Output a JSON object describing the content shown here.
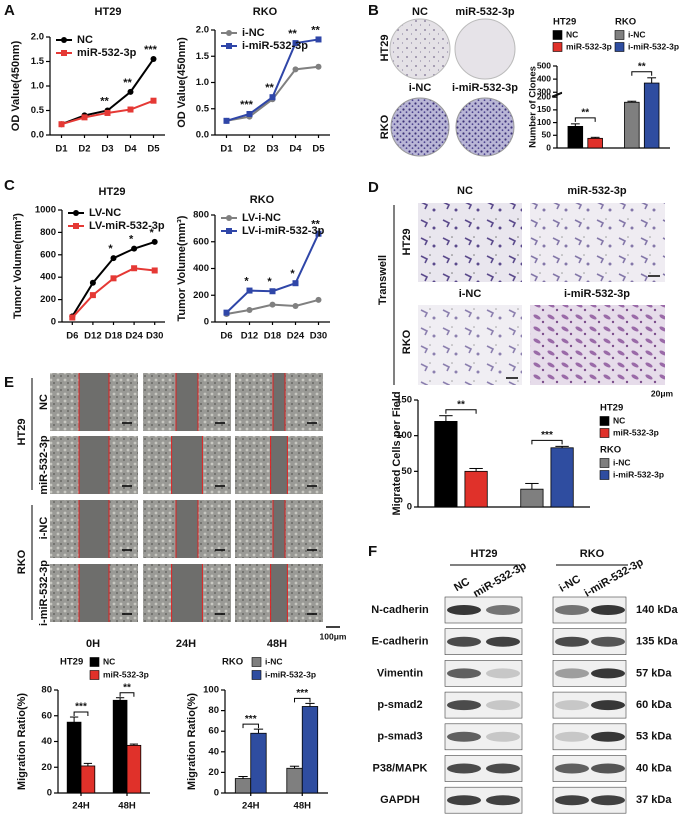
{
  "panel_labels": [
    "A",
    "B",
    "C",
    "D",
    "E",
    "F"
  ],
  "colony_assay": {
    "columns_top": [
      "NC",
      "miR-532-3p"
    ],
    "columns_bottom": [
      "i-NC",
      "i-miR-532-3p"
    ],
    "rows": [
      "HT29",
      "RKO"
    ]
  },
  "transwell": {
    "label": "Transwell",
    "columns_top": [
      "NC",
      "miR-532-3p"
    ],
    "columns_bottom": [
      "i-NC",
      "i-miR-532-3p"
    ],
    "rows": [
      "HT29",
      "RKO"
    ],
    "scale_bar": "20μm"
  },
  "wound_healing": {
    "groups": [
      "HT29",
      "RKO"
    ],
    "rows": [
      "NC",
      "miR-532-3p",
      "i-NC",
      "i-miR-532-3p"
    ],
    "times": [
      "0H",
      "24H",
      "48H"
    ],
    "scale_bar": "100μm"
  },
  "western_blot": {
    "groups": [
      "HT29",
      "RKO"
    ],
    "lanes": [
      "NC",
      "miR-532-3p",
      "i-NC",
      "i-miR-532-3p"
    ],
    "proteins": [
      {
        "name": "N-cadherin",
        "size": "140 kDa"
      },
      {
        "name": "E-cadherin",
        "size": "135 kDa"
      },
      {
        "name": "Vimentin",
        "size": "57 kDa"
      },
      {
        "name": "p-smad2",
        "size": "60 kDa"
      },
      {
        "name": "p-smad3",
        "size": "53 kDa"
      },
      {
        "name": "P38/MAPK",
        "size": "40 kDa"
      },
      {
        "name": "GAPDH",
        "size": "37 kDa"
      }
    ]
  },
  "chart_data": [
    {
      "type": "line",
      "title": "HT29",
      "ylabel": "OD Value(450nm)",
      "categories": [
        "D1",
        "D2",
        "D3",
        "D4",
        "D5"
      ],
      "series": [
        {
          "name": "NC",
          "color": "#000000",
          "marker": "circle",
          "values": [
            0.22,
            0.4,
            0.5,
            0.88,
            1.55
          ]
        },
        {
          "name": "miR-532-3p",
          "color": "#e53935",
          "marker": "square",
          "values": [
            0.22,
            0.36,
            0.45,
            0.52,
            0.7
          ]
        }
      ],
      "ylim": [
        0,
        2
      ],
      "yticks": [
        {
          "value": 0,
          "label": "0.0"
        },
        0.5,
        {
          "value": 1,
          "label": "1.0"
        },
        1.5,
        {
          "value": 2,
          "label": "2.0"
        }
      ],
      "annotations": [
        null,
        null,
        "**",
        "**",
        "***"
      ],
      "legend": "upper left"
    },
    {
      "type": "line",
      "title": "RKO",
      "ylabel": "OD Value(450nm)",
      "categories": [
        "D1",
        "D2",
        "D3",
        "D4",
        "D5"
      ],
      "series": [
        {
          "name": "i-NC",
          "color": "#808080",
          "marker": "circle",
          "values": [
            0.27,
            0.35,
            0.68,
            1.25,
            1.3
          ]
        },
        {
          "name": "i-miR-532-3p",
          "color": "#2f46a8",
          "marker": "square",
          "values": [
            0.27,
            0.4,
            0.72,
            1.75,
            1.82
          ]
        }
      ],
      "ylim": [
        0,
        2
      ],
      "yticks": [
        {
          "value": 0,
          "label": "0.0"
        },
        0.5,
        {
          "value": 1,
          "label": "1.0"
        },
        1.5,
        {
          "value": 2,
          "label": "2.0"
        }
      ],
      "annotations": [
        null,
        "***",
        "**",
        "**",
        "**"
      ],
      "legend": "upper left"
    },
    {
      "type": "bar",
      "ylabel": "Number of Clones",
      "legend": "top",
      "groups": [
        {
          "name": "HT29",
          "annotation": "**",
          "series": [
            {
              "name": "NC",
              "color": "#000000",
              "value": 85,
              "error": 10
            },
            {
              "name": "miR-532-3p",
              "color": "#e0312a",
              "value": 38,
              "error": 4
            }
          ]
        },
        {
          "name": "RKO",
          "annotation": "**",
          "series": [
            {
              "name": "i-NC",
              "color": "#7f7f7f",
              "value": 180,
              "error": 4
            },
            {
              "name": "i-miR-532-3p",
              "color": "#2f4da0",
              "value": 370,
              "error": 40
            }
          ]
        }
      ],
      "ylim": [
        0,
        500
      ],
      "ybreak": [
        200,
        300
      ],
      "yticks": [
        0,
        50,
        100,
        150,
        200,
        300,
        400,
        500
      ]
    },
    {
      "type": "line",
      "title": "HT29",
      "ylabel": "Tumor Volume(mm³)",
      "categories": [
        "D6",
        "D12",
        "D18",
        "D24",
        "D30"
      ],
      "series": [
        {
          "name": "LV-NC",
          "color": "#000000",
          "marker": "circle",
          "values": [
            50,
            350,
            570,
            655,
            715
          ]
        },
        {
          "name": "LV-miR-532-3p",
          "color": "#e53935",
          "marker": "square",
          "values": [
            40,
            240,
            390,
            480,
            460
          ]
        }
      ],
      "ylim": [
        0,
        1000
      ],
      "yticks": [
        0,
        200,
        400,
        600,
        800,
        1000
      ],
      "annotations": [
        null,
        null,
        "*",
        "*",
        "*"
      ],
      "legend": "upper left"
    },
    {
      "type": "line",
      "title": "RKO",
      "ylabel": "Tumor Volume(mm³)",
      "categories": [
        "D6",
        "D12",
        "D18",
        "D24",
        "D30"
      ],
      "series": [
        {
          "name": "LV-i-NC",
          "color": "#808080",
          "marker": "circle",
          "values": [
            60,
            90,
            130,
            120,
            165
          ]
        },
        {
          "name": "LV-i-miR-532-3p",
          "color": "#2f46a8",
          "marker": "square",
          "values": [
            70,
            235,
            230,
            290,
            660
          ]
        }
      ],
      "ylim": [
        0,
        800
      ],
      "yticks": [
        0,
        200,
        400,
        600,
        800
      ],
      "annotations": [
        null,
        "*",
        "*",
        "*",
        "**"
      ],
      "legend": "upper left"
    },
    {
      "type": "bar",
      "ylabel": "Migrated Cells per Field",
      "legend": "right",
      "groups": [
        {
          "name": "HT29",
          "annotation": "**",
          "series": [
            {
              "name": "NC",
              "color": "#000000",
              "value": 120,
              "error": 8
            },
            {
              "name": "miR-532-3p",
              "color": "#e0312a",
              "value": 50,
              "error": 4
            }
          ]
        },
        {
          "name": "RKO",
          "annotation": "***",
          "series": [
            {
              "name": "i-NC",
              "color": "#7f7f7f",
              "value": 25,
              "error": 8
            },
            {
              "name": "i-miR-532-3p",
              "color": "#2f4da0",
              "value": 83,
              "error": 2
            }
          ]
        }
      ],
      "ylim": [
        0,
        150
      ],
      "yticks": [
        0,
        50,
        100,
        150
      ]
    },
    {
      "type": "bar",
      "title": "HT29",
      "ylabel": "Migration Ratio(%)",
      "categories": [
        "24H",
        "48H"
      ],
      "series": [
        {
          "name": "NC",
          "color": "#000000",
          "values": [
            55,
            72
          ],
          "errors": [
            4,
            2
          ]
        },
        {
          "name": "miR-532-3p",
          "color": "#e0312a",
          "values": [
            21,
            37
          ],
          "errors": [
            2,
            1
          ]
        }
      ],
      "ylim": [
        0,
        80
      ],
      "yticks": [
        0,
        20,
        40,
        60,
        80
      ],
      "annotations": [
        "***",
        "**"
      ],
      "legend": "top"
    },
    {
      "type": "bar",
      "title": "RKO",
      "ylabel": "Migration Ratio(%)",
      "categories": [
        "24H",
        "48H"
      ],
      "series": [
        {
          "name": "i-NC",
          "color": "#7f7f7f",
          "values": [
            14,
            24
          ],
          "errors": [
            2,
            2
          ]
        },
        {
          "name": "i-miR-532-3p",
          "color": "#2f4da0",
          "values": [
            58,
            84
          ],
          "errors": [
            4,
            3
          ]
        }
      ],
      "ylim": [
        0,
        100
      ],
      "yticks": [
        0,
        20,
        40,
        60,
        80,
        100
      ],
      "annotations": [
        "***",
        "***"
      ],
      "legend": "top"
    }
  ]
}
